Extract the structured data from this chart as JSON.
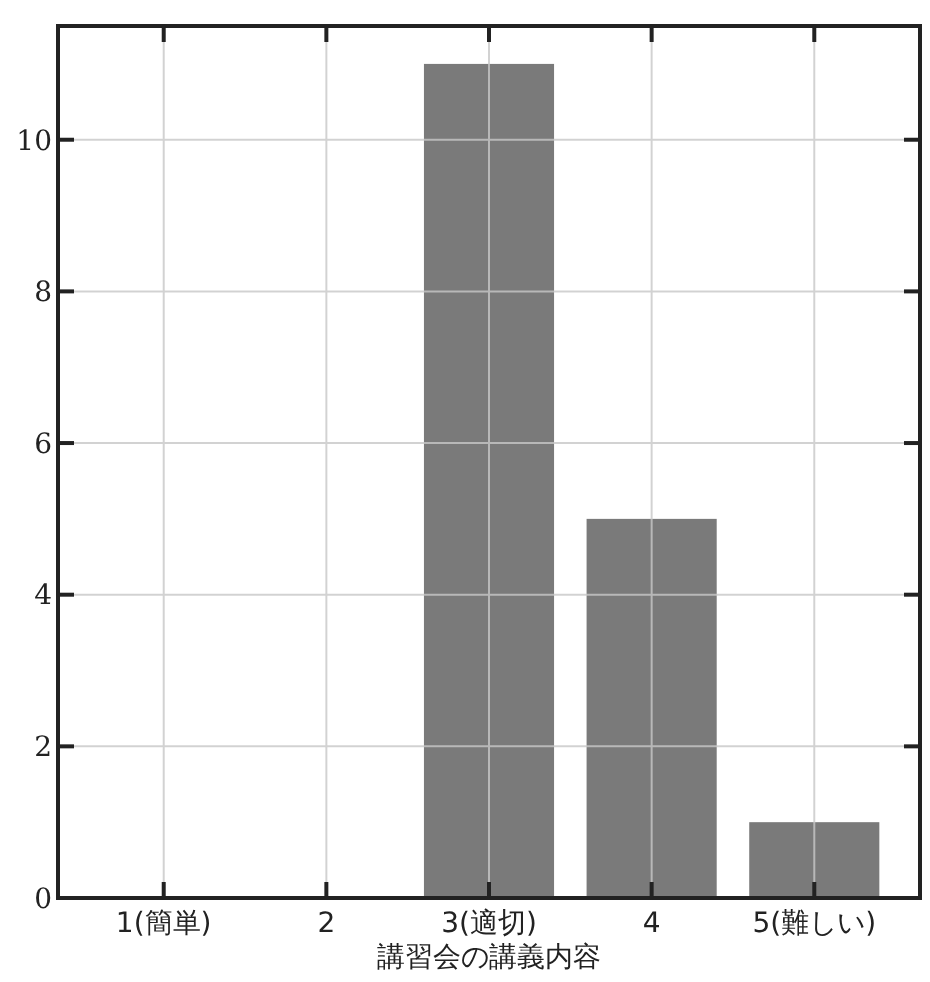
{
  "chart_data": {
    "type": "bar",
    "xlabel": "講習会の講義内容",
    "categories": [
      "1(簡単)",
      "2",
      "3(適切)",
      "4",
      "5(難しい)"
    ],
    "values": [
      0,
      0,
      11,
      5,
      1
    ],
    "color": "#7a7a7a",
    "ylim": [
      0,
      11.5
    ],
    "yticks": [
      0,
      2,
      4,
      6,
      8,
      10
    ],
    "grid": true
  }
}
